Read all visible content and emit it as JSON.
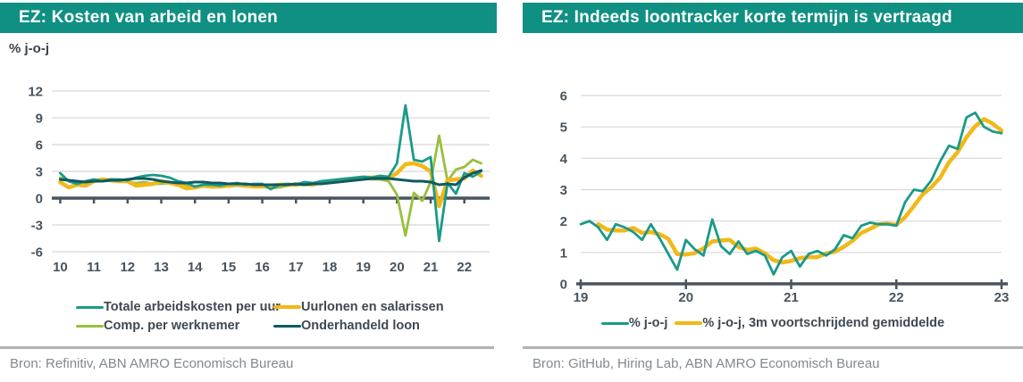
{
  "brand": {
    "banner_color": "#0F9082",
    "axis_color": "#49545E",
    "grid_color": "#D8D8D8",
    "legend_text_color": "#3E4953",
    "source_text_color": "#82898F"
  },
  "panels": [
    {
      "title": "EZ: Kosten van arbeid en lonen",
      "subtitle": "% j-o-j",
      "source": "Bron: Refinitiv, ABN AMRO Economisch Bureau"
    },
    {
      "title": "EZ: Indeeds loontracker korte termijn is vertraagd",
      "source": "Bron: GitHub, Hiring Lab, ABN AMRO Economisch Bureau"
    }
  ],
  "chart_data": [
    {
      "type": "line",
      "title": "EZ: Kosten van arbeid en lonen",
      "ylabel": "% j-o-j",
      "xlabel": "",
      "ylim": [
        -6,
        12
      ],
      "yticks": [
        12,
        9,
        6,
        3,
        0,
        -3,
        -6
      ],
      "xlim": [
        2009.75,
        2022.75
      ],
      "xticks": [
        2010,
        2011,
        2012,
        2013,
        2014,
        2015,
        2016,
        2017,
        2018,
        2019,
        2020,
        2021,
        2022
      ],
      "xtick_labels": [
        "10",
        "11",
        "12",
        "13",
        "14",
        "15",
        "16",
        "17",
        "18",
        "19",
        "20",
        "21",
        "22"
      ],
      "grid": true,
      "legend_position": "bottom",
      "zorder": [
        2,
        1,
        0,
        3
      ],
      "series": [
        {
          "name": "Totale arbeidskosten per uur",
          "color": "#1B9A89",
          "width": 2.8,
          "x_start": 2010.0,
          "x_step": 0.25,
          "values": [
            2.8,
            1.9,
            1.6,
            1.9,
            2.1,
            1.9,
            2.1,
            2.1,
            2.0,
            2.3,
            2.5,
            2.6,
            2.5,
            2.3,
            1.9,
            1.7,
            1.3,
            1.5,
            1.5,
            1.4,
            1.6,
            1.7,
            1.5,
            1.6,
            1.6,
            1.0,
            1.5,
            1.6,
            1.5,
            1.8,
            1.7,
            1.9,
            2.0,
            2.1,
            2.2,
            2.3,
            2.4,
            2.3,
            2.5,
            2.4,
            3.9,
            10.4,
            4.3,
            4.1,
            4.6,
            -4.8,
            1.7,
            0.5,
            2.8,
            2.4,
            3.0
          ]
        },
        {
          "name": "Uurlonen en salarissen",
          "color": "#F2B818",
          "width": 4.5,
          "x_start": 2010.0,
          "x_step": 0.25,
          "values": [
            1.8,
            1.2,
            1.5,
            1.4,
            1.9,
            2.1,
            2.0,
            1.9,
            1.9,
            1.4,
            1.5,
            1.6,
            1.9,
            1.7,
            1.5,
            1.1,
            1.2,
            1.4,
            1.3,
            1.3,
            1.4,
            1.6,
            1.4,
            1.3,
            1.3,
            1.4,
            1.5,
            1.5,
            1.5,
            1.6,
            1.5,
            1.8,
            1.9,
            2.0,
            2.1,
            2.2,
            2.3,
            2.3,
            2.4,
            2.2,
            2.8,
            3.8,
            3.9,
            3.6,
            3.0,
            -0.9,
            2.0,
            2.1,
            2.2,
            3.1,
            2.5
          ]
        },
        {
          "name": "Comp. per werknemer",
          "color": "#99BF3D",
          "width": 2.8,
          "x_start": 2010.0,
          "x_step": 0.25,
          "values": [
            2.3,
            2.0,
            1.7,
            1.5,
            1.9,
            2.0,
            2.1,
            2.0,
            1.8,
            1.7,
            1.8,
            1.6,
            1.6,
            1.7,
            1.5,
            1.4,
            1.3,
            1.4,
            1.2,
            1.3,
            1.3,
            1.4,
            1.3,
            1.5,
            1.3,
            1.1,
            1.2,
            1.4,
            1.5,
            1.6,
            1.7,
            1.7,
            1.9,
            2.1,
            2.2,
            2.2,
            2.2,
            2.1,
            2.1,
            1.9,
            0.4,
            -4.2,
            0.6,
            -0.3,
            1.8,
            7.0,
            1.9,
            3.2,
            3.5,
            4.3,
            3.9
          ]
        },
        {
          "name": "Onderhandeld loon",
          "color": "#0D5A62",
          "width": 3.0,
          "x_start": 2010.0,
          "x_step": 0.25,
          "values": [
            2.1,
            2.0,
            1.9,
            1.8,
            1.9,
            1.9,
            2.0,
            2.0,
            2.1,
            2.2,
            2.2,
            2.1,
            1.9,
            1.8,
            1.7,
            1.7,
            1.8,
            1.8,
            1.7,
            1.7,
            1.6,
            1.6,
            1.6,
            1.5,
            1.5,
            1.5,
            1.5,
            1.5,
            1.6,
            1.5,
            1.6,
            1.6,
            1.7,
            1.8,
            1.9,
            2.0,
            2.1,
            2.2,
            2.2,
            2.2,
            2.1,
            2.0,
            1.9,
            1.9,
            1.8,
            1.5,
            1.6,
            1.5,
            2.3,
            2.8,
            3.1
          ]
        }
      ]
    },
    {
      "type": "line",
      "title": "EZ: Indeeds loontracker korte termijn is vertraagd",
      "ylabel": "",
      "xlabel": "",
      "ylim": [
        0,
        6
      ],
      "yticks": [
        6,
        5,
        4,
        3,
        2,
        1,
        0
      ],
      "xlim": [
        2019,
        2023
      ],
      "xticks": [
        2019,
        2020,
        2021,
        2022,
        2023
      ],
      "xtick_labels": [
        "19",
        "20",
        "21",
        "22",
        "23"
      ],
      "grid": true,
      "legend_position": "bottom",
      "zorder": [
        1,
        0
      ],
      "series": [
        {
          "name": "% j-o-j",
          "color": "#1B9A89",
          "width": 2.8,
          "x_start": 2019.0,
          "x_step": 0.08333,
          "values": [
            1.9,
            2.0,
            1.8,
            1.4,
            1.9,
            1.8,
            1.65,
            1.4,
            1.9,
            1.45,
            0.95,
            0.45,
            1.4,
            1.1,
            0.9,
            2.05,
            1.2,
            0.95,
            1.35,
            0.95,
            1.05,
            0.9,
            0.3,
            0.85,
            1.05,
            0.55,
            0.95,
            1.05,
            0.9,
            1.1,
            1.55,
            1.45,
            1.85,
            1.95,
            1.9,
            1.9,
            1.85,
            2.6,
            3.0,
            2.95,
            3.3,
            3.9,
            4.4,
            4.3,
            5.3,
            5.45,
            5.0,
            4.85,
            4.8
          ]
        },
        {
          "name": "% j-o-j, 3m voortschrijdend gemiddelde",
          "color": "#F2B818",
          "width": 4.5,
          "x_start": 2019.16667,
          "x_step": 0.08333,
          "values": [
            1.9,
            1.73,
            1.7,
            1.7,
            1.78,
            1.62,
            1.65,
            1.58,
            1.43,
            0.95,
            0.93,
            0.98,
            1.13,
            1.35,
            1.38,
            1.4,
            1.17,
            1.08,
            1.12,
            0.97,
            0.75,
            0.68,
            0.73,
            0.82,
            0.85,
            0.85,
            0.97,
            1.02,
            1.18,
            1.37,
            1.62,
            1.75,
            1.9,
            1.92,
            1.88,
            2.12,
            2.48,
            2.85,
            3.08,
            3.38,
            3.87,
            4.2,
            4.67,
            5.02,
            5.25,
            5.1,
            4.88
          ]
        }
      ]
    }
  ]
}
